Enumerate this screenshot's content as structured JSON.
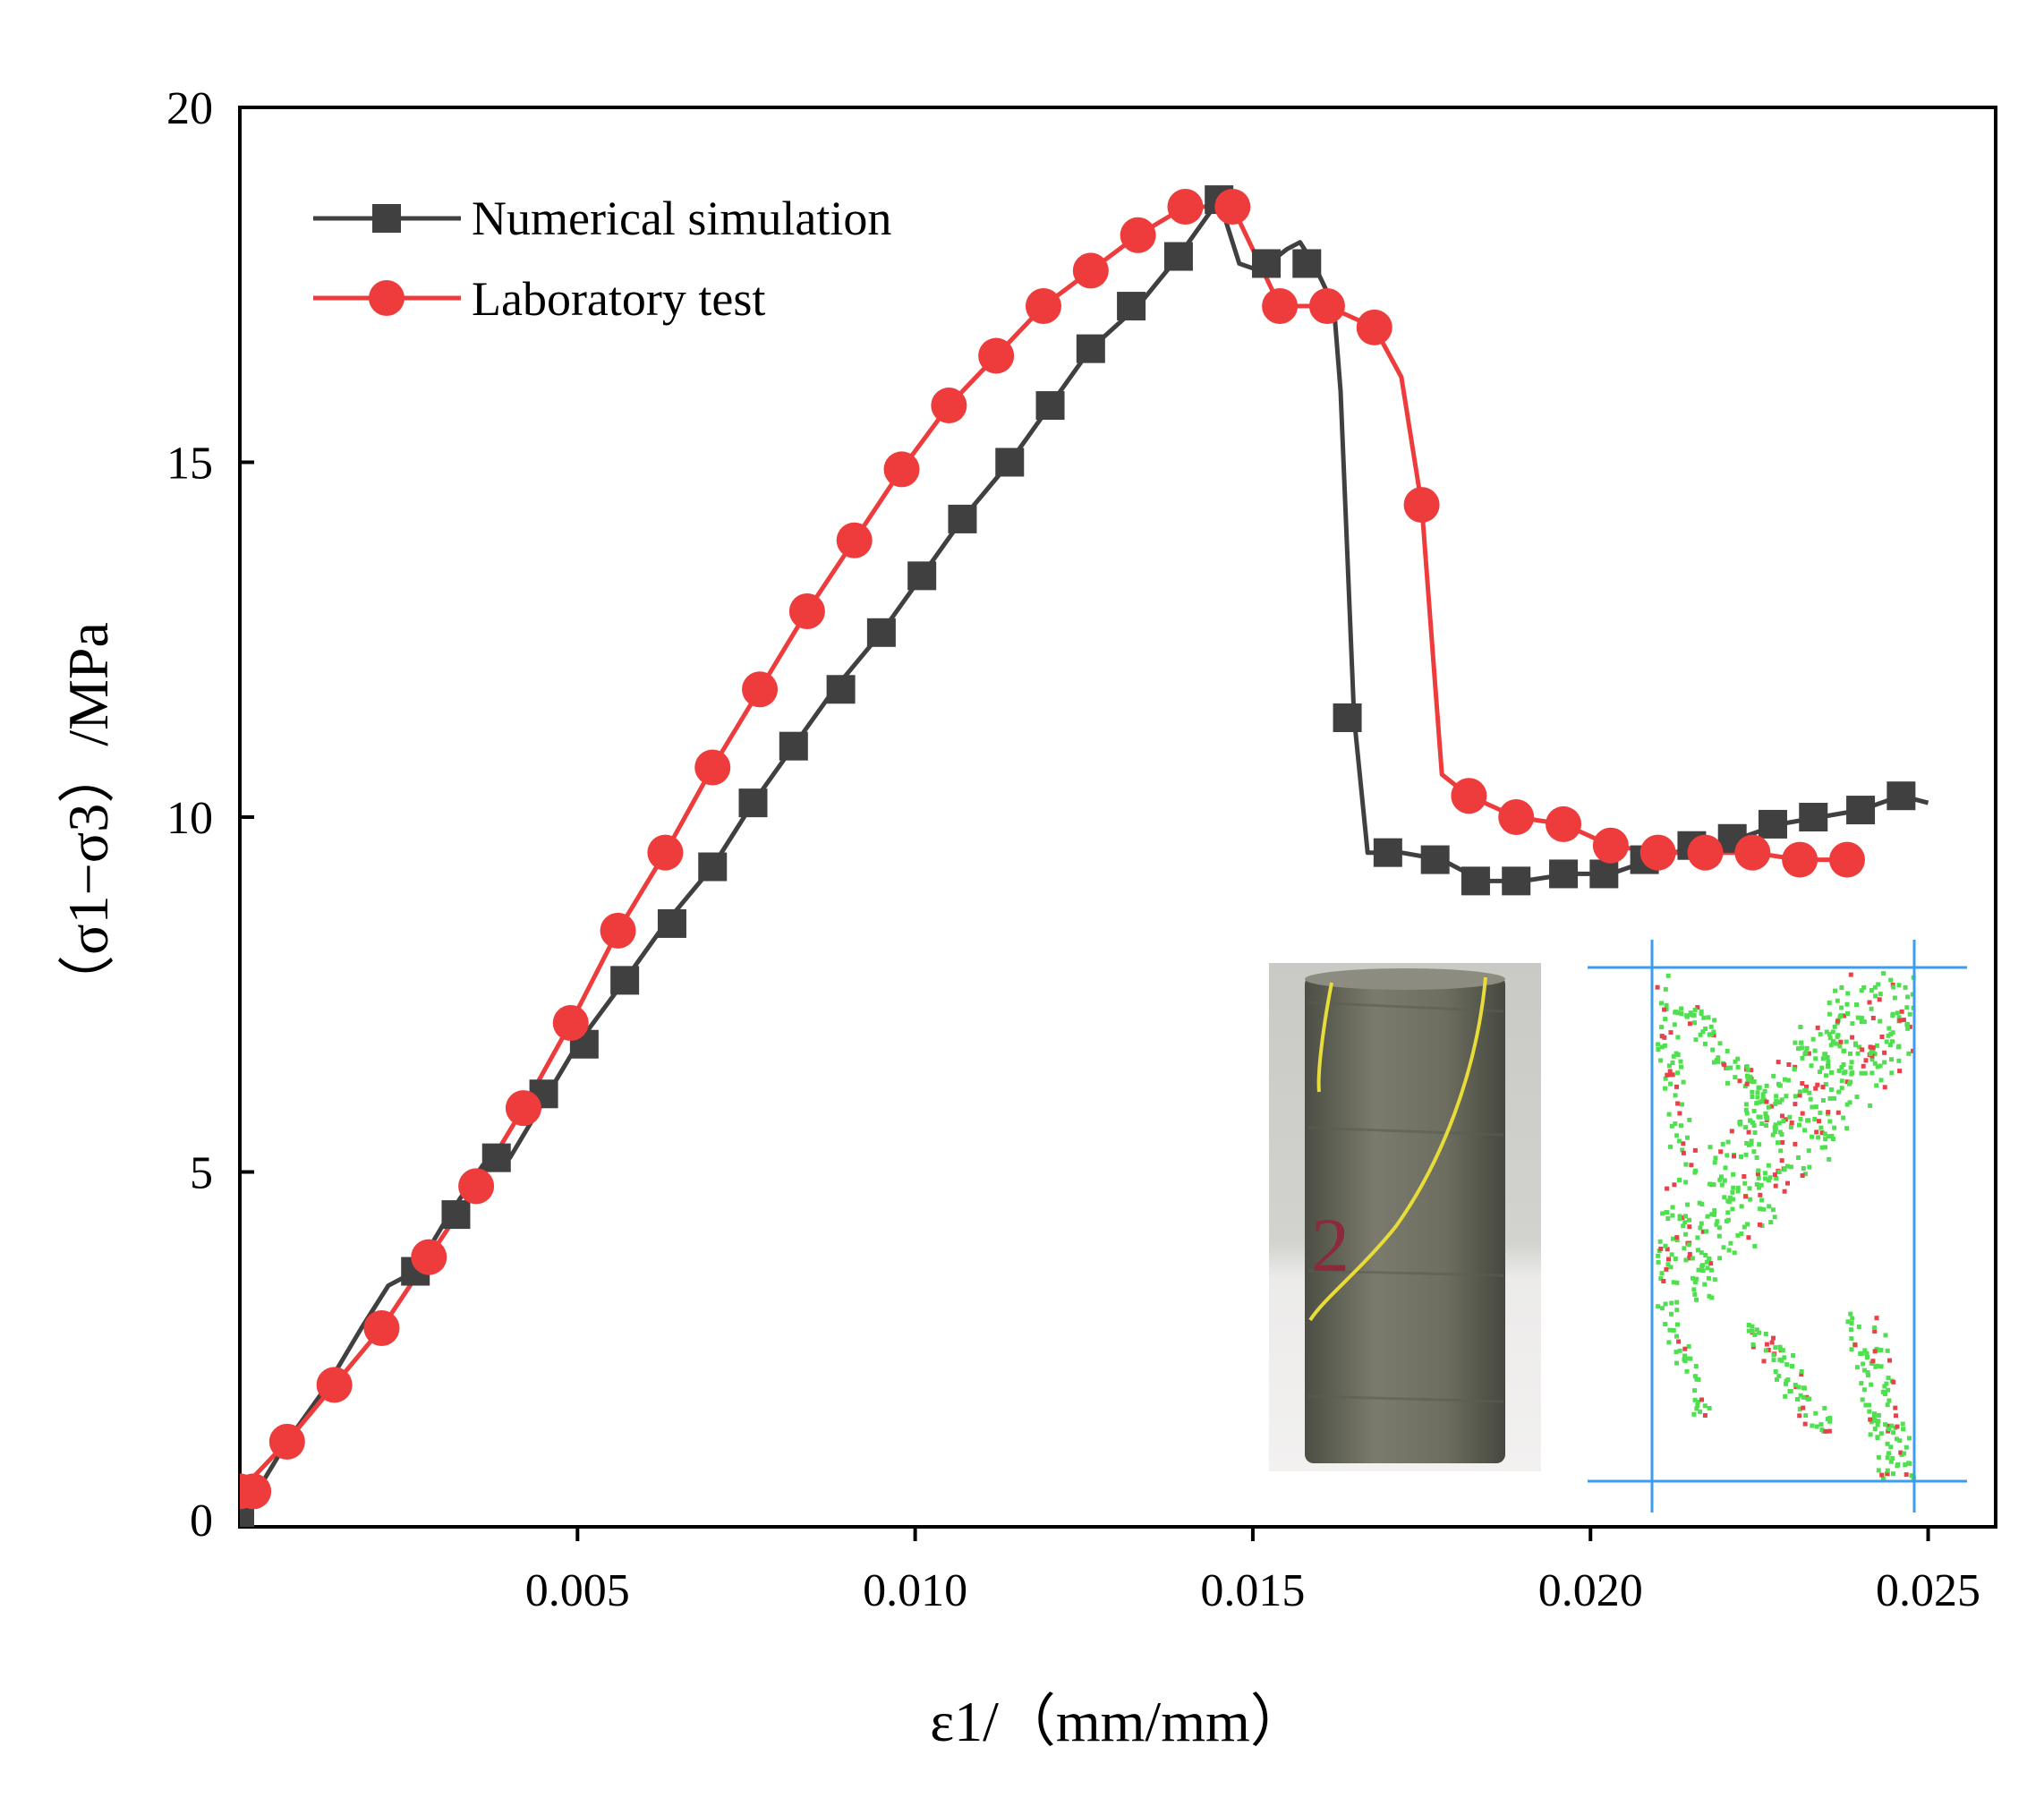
{
  "chart_data": {
    "type": "line",
    "title": "",
    "xlabel": "ε1/（mm/mm）",
    "ylabel": "（σ1−σ3）/MPa",
    "xlim": [
      0,
      0.026
    ],
    "ylim": [
      0,
      20
    ],
    "x_ticks": [
      0.005,
      0.01,
      0.015,
      0.02,
      0.025
    ],
    "x_tick_labels": [
      "0.005",
      "0.010",
      "0.015",
      "0.020",
      "0.025"
    ],
    "y_ticks": [
      0,
      5,
      10,
      15,
      20
    ],
    "y_tick_labels": [
      "0",
      "5",
      "10",
      "15",
      "20"
    ],
    "legend_position": "top-left",
    "series": [
      {
        "name": "Numerical simulation",
        "color": "#404040",
        "marker": "square",
        "x": [
          0.0,
          0.0007,
          0.0013,
          0.0018,
          0.0022,
          0.0026,
          0.0031,
          0.0036,
          0.004,
          0.0045,
          0.005,
          0.0057,
          0.0063,
          0.007,
          0.0076,
          0.0082,
          0.0088,
          0.0095,
          0.0101,
          0.0107,
          0.0114,
          0.012,
          0.0126,
          0.0133,
          0.0139,
          0.0145,
          0.0148,
          0.0151,
          0.0155,
          0.0157,
          0.0159,
          0.0162,
          0.0163,
          0.0165,
          0.0167,
          0.0172,
          0.0178,
          0.0184,
          0.019,
          0.0197,
          0.0203,
          0.0209,
          0.0216,
          0.0222,
          0.0228,
          0.0234,
          0.024,
          0.0246,
          0.025
        ],
        "y": [
          0.1,
          1.2,
          2.0,
          2.8,
          3.4,
          3.6,
          4.4,
          5.1,
          5.2,
          6.0,
          6.8,
          7.7,
          8.5,
          9.3,
          10.2,
          11.0,
          11.8,
          12.6,
          13.4,
          14.2,
          15.0,
          15.8,
          16.6,
          17.2,
          17.9,
          18.7,
          17.8,
          17.7,
          18.0,
          18.1,
          17.8,
          17.2,
          16.0,
          11.4,
          9.5,
          9.5,
          9.4,
          9.1,
          9.1,
          9.2,
          9.2,
          9.4,
          9.6,
          9.7,
          9.9,
          10.0,
          10.1,
          10.3,
          10.2
        ],
        "marker_x": [
          0.0,
          0.0026,
          0.0032,
          0.0038,
          0.0045,
          0.0051,
          0.0057,
          0.0064,
          0.007,
          0.0076,
          0.0082,
          0.0089,
          0.0095,
          0.0101,
          0.0107,
          0.0114,
          0.012,
          0.0126,
          0.0132,
          0.0139,
          0.0145,
          0.0152,
          0.0158,
          0.0164,
          0.017,
          0.0177,
          0.0183,
          0.0189,
          0.0196,
          0.0202,
          0.0208,
          0.0215,
          0.0221,
          0.0227,
          0.0233,
          0.024,
          0.0246
        ],
        "marker_y": [
          0.1,
          3.6,
          4.4,
          5.2,
          6.1,
          6.8,
          7.7,
          8.5,
          9.3,
          10.2,
          11.0,
          11.8,
          12.6,
          13.4,
          14.2,
          15.0,
          15.8,
          16.6,
          17.2,
          17.9,
          18.7,
          17.8,
          17.8,
          11.4,
          9.5,
          9.4,
          9.1,
          9.1,
          9.2,
          9.2,
          9.4,
          9.6,
          9.7,
          9.9,
          10.0,
          10.1,
          10.3
        ]
      },
      {
        "name": "Laboratory test",
        "color": "#EE3B3B",
        "marker": "circle",
        "x": [
          0.0,
          0.0007,
          0.0014,
          0.0021,
          0.0028,
          0.0035,
          0.0042,
          0.0049,
          0.0056,
          0.0063,
          0.007,
          0.0077,
          0.0084,
          0.0091,
          0.0098,
          0.0105,
          0.0112,
          0.0119,
          0.0126,
          0.0133,
          0.014,
          0.0147,
          0.015,
          0.0154,
          0.0161,
          0.0168,
          0.0172,
          0.0175,
          0.0178,
          0.0182,
          0.0189,
          0.0196,
          0.0203,
          0.021,
          0.0217,
          0.0224,
          0.0231,
          0.0238,
          0.024
        ],
        "y": [
          0.5,
          1.2,
          2.0,
          2.8,
          3.8,
          4.8,
          5.9,
          7.1,
          8.4,
          9.5,
          10.7,
          11.8,
          12.9,
          13.9,
          14.9,
          15.8,
          16.5,
          17.2,
          17.7,
          18.2,
          18.6,
          18.6,
          18.0,
          17.2,
          17.2,
          16.9,
          16.2,
          14.4,
          10.6,
          10.3,
          10.0,
          9.9,
          9.6,
          9.5,
          9.5,
          9.5,
          9.4,
          9.4,
          9.4
        ],
        "marker_x": [
          0.0,
          0.0002,
          0.0007,
          0.0014,
          0.0021,
          0.0028,
          0.0035,
          0.0042,
          0.0049,
          0.0056,
          0.0063,
          0.007,
          0.0077,
          0.0084,
          0.0091,
          0.0098,
          0.0105,
          0.0112,
          0.0119,
          0.0126,
          0.0133,
          0.014,
          0.0147,
          0.0154,
          0.0161,
          0.0168,
          0.0175,
          0.0182,
          0.0189,
          0.0196,
          0.0203,
          0.021,
          0.0217,
          0.0224,
          0.0231,
          0.0238
        ],
        "marker_y": [
          0.5,
          0.5,
          1.2,
          2.0,
          2.8,
          3.8,
          4.8,
          5.9,
          7.1,
          8.4,
          9.5,
          10.7,
          11.8,
          12.9,
          13.9,
          14.9,
          15.8,
          16.5,
          17.2,
          17.7,
          18.2,
          18.6,
          18.6,
          17.2,
          17.2,
          16.9,
          14.4,
          10.3,
          10.0,
          9.9,
          9.6,
          9.5,
          9.5,
          9.5,
          9.4,
          9.4
        ]
      }
    ],
    "inset_images": [
      {
        "name": "specimen-photo",
        "marker_text": "2"
      },
      {
        "name": "numerical-crack-pattern"
      }
    ]
  }
}
